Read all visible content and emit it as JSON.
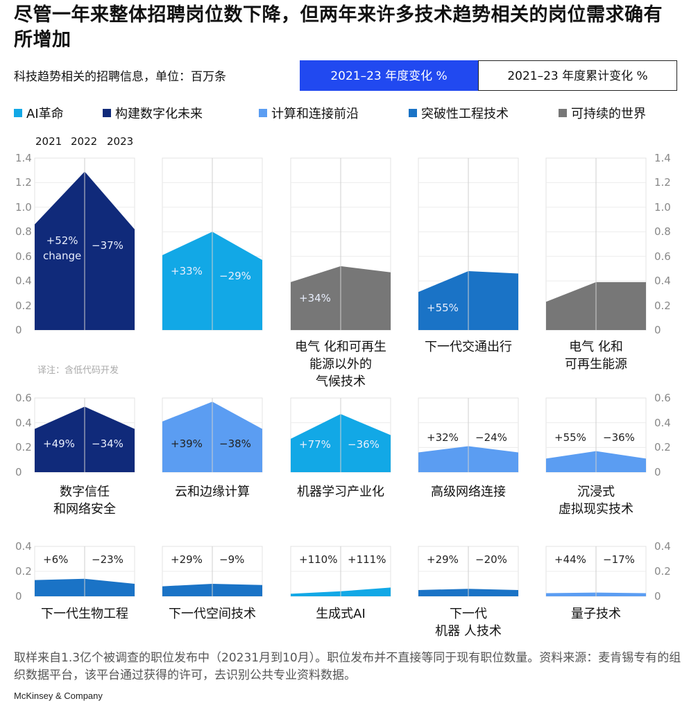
{
  "title": "尽管一年来整体招聘岗位数下降，但两年来许多技术趋势相关的岗位需求确有所增加",
  "subtitle": "科技趋势相关的招聘信息，单位：百万条",
  "tabs": [
    {
      "label": "2021–23 年度变化 %",
      "active": true
    },
    {
      "label": "2021–23 年度累计变化 %",
      "active": false
    }
  ],
  "legend": [
    {
      "label": "AI革命",
      "color": "#12a8e6"
    },
    {
      "label": "构建数字化未来",
      "color": "#102a7a"
    },
    {
      "label": "计算和连接前沿",
      "color": "#5b9df2"
    },
    {
      "label": "突破性工程技术",
      "color": "#1a73c6"
    },
    {
      "label": "可持续的世界",
      "color": "#777777"
    }
  ],
  "years": [
    "2021",
    "2022",
    "2023"
  ],
  "note": "译注：含低代码开发",
  "footnote": "取样来自1.3亿个被调查的职位发布中（20231月到10月）。职位发布并不直接等同于现有职位数量。资料来源：麦肯锡专有的组织数据平台，该平台通过获得的许可，去识别公共专业资料数据。",
  "brand": "McKinsey & Company",
  "chart_data": {
    "type": "area",
    "x": [
      "2021",
      "2022",
      "2023"
    ],
    "unit": "百万条",
    "rows": [
      {
        "ylim": [
          0,
          1.4
        ],
        "ticks": [
          "1.4",
          "1.2",
          "1.0",
          "0.8",
          "0.6",
          "0.4",
          "0.2",
          "0"
        ],
        "panels": [
          {
            "name": "",
            "lines": [],
            "color": "#102a7a",
            "values": [
              0.86,
              1.29,
              0.82
            ],
            "changes": [
              "+52%\nchange",
              "−37%"
            ]
          },
          {
            "name": "",
            "lines": [],
            "color": "#12a8e6",
            "values": [
              0.61,
              0.8,
              0.57
            ],
            "changes": [
              "+33%",
              "−29%"
            ]
          },
          {
            "name": "电气 化和可再生能源以外的气候技术",
            "lines": [
              "电气 化和可再生",
              "能源以外的",
              "气候技术"
            ],
            "color": "#777777",
            "values": [
              0.39,
              0.52,
              0.47
            ],
            "changes": [
              "+34%",
              ""
            ]
          },
          {
            "name": "下一代交通出行",
            "lines": [
              "下一代交通出行"
            ],
            "color": "#1a73c6",
            "values": [
              0.31,
              0.48,
              0.46
            ],
            "changes": [
              "+55%",
              ""
            ]
          },
          {
            "name": "电气 化和可再生能源",
            "lines": [
              "电气 化和",
              "可再生能源"
            ],
            "color": "#777777",
            "values": [
              0.23,
              0.39,
              0.39
            ],
            "changes": [
              "",
              ""
            ]
          }
        ]
      },
      {
        "ylim": [
          0,
          0.6
        ],
        "ticks": [
          "0.6",
          "0.4",
          "0.2",
          "0"
        ],
        "panels": [
          {
            "name": "数字信任和网络安全",
            "lines": [
              "数字信任",
              "和网络安全"
            ],
            "color": "#102a7a",
            "values": [
              0.35,
              0.53,
              0.35
            ],
            "changes": [
              "+49%",
              "−34%"
            ]
          },
          {
            "name": "云和边缘计算",
            "lines": [
              "云和边缘计算"
            ],
            "color": "#5b9df2",
            "values": [
              0.41,
              0.57,
              0.35
            ],
            "changes": [
              "+39%",
              "−38%"
            ]
          },
          {
            "name": "机器学习产业化",
            "lines": [
              "机器学习产业化"
            ],
            "color": "#12a8e6",
            "values": [
              0.27,
              0.47,
              0.3
            ],
            "changes": [
              "+77%",
              "−36%"
            ]
          },
          {
            "name": "高级网络连接",
            "lines": [
              "高级网络连接"
            ],
            "color": "#5b9df2",
            "values": [
              0.16,
              0.21,
              0.16
            ],
            "changes": [
              "+32%",
              "−24%"
            ]
          },
          {
            "name": "沉浸式虚拟现实技术",
            "lines": [
              "沉浸式",
              "虚拟现实技术"
            ],
            "color": "#5b9df2",
            "values": [
              0.11,
              0.17,
              0.11
            ],
            "changes": [
              "+55%",
              "−36%"
            ]
          }
        ]
      },
      {
        "ylim": [
          0,
          0.4
        ],
        "ticks": [
          "0.4",
          "0.2",
          "0"
        ],
        "panels": [
          {
            "name": "下一代生物工程",
            "lines": [
              "下一代生物工程"
            ],
            "color": "#1a73c6",
            "values": [
              0.13,
              0.14,
              0.1
            ],
            "changes": [
              "+6%",
              "−23%"
            ]
          },
          {
            "name": "下一代空间技术",
            "lines": [
              "下一代空间技术"
            ],
            "color": "#1a73c6",
            "values": [
              0.08,
              0.1,
              0.09
            ],
            "changes": [
              "+29%",
              "−9%"
            ]
          },
          {
            "name": "生成式AI",
            "lines": [
              "生成式AI"
            ],
            "color": "#12a8e6",
            "values": [
              0.02,
              0.04,
              0.07
            ],
            "changes": [
              "+110%",
              "+111%"
            ]
          },
          {
            "name": "下一代机器 人技术",
            "lines": [
              "下一代",
              "机器 人技术"
            ],
            "color": "#1a73c6",
            "values": [
              0.05,
              0.06,
              0.05
            ],
            "changes": [
              "+29%",
              "−20%"
            ]
          },
          {
            "name": "量子技术",
            "lines": [
              "量子技术"
            ],
            "color": "#5b9df2",
            "values": [
              0.025,
              0.03,
              0.025
            ],
            "changes": [
              "+44%",
              "−17%"
            ]
          }
        ]
      }
    ]
  }
}
